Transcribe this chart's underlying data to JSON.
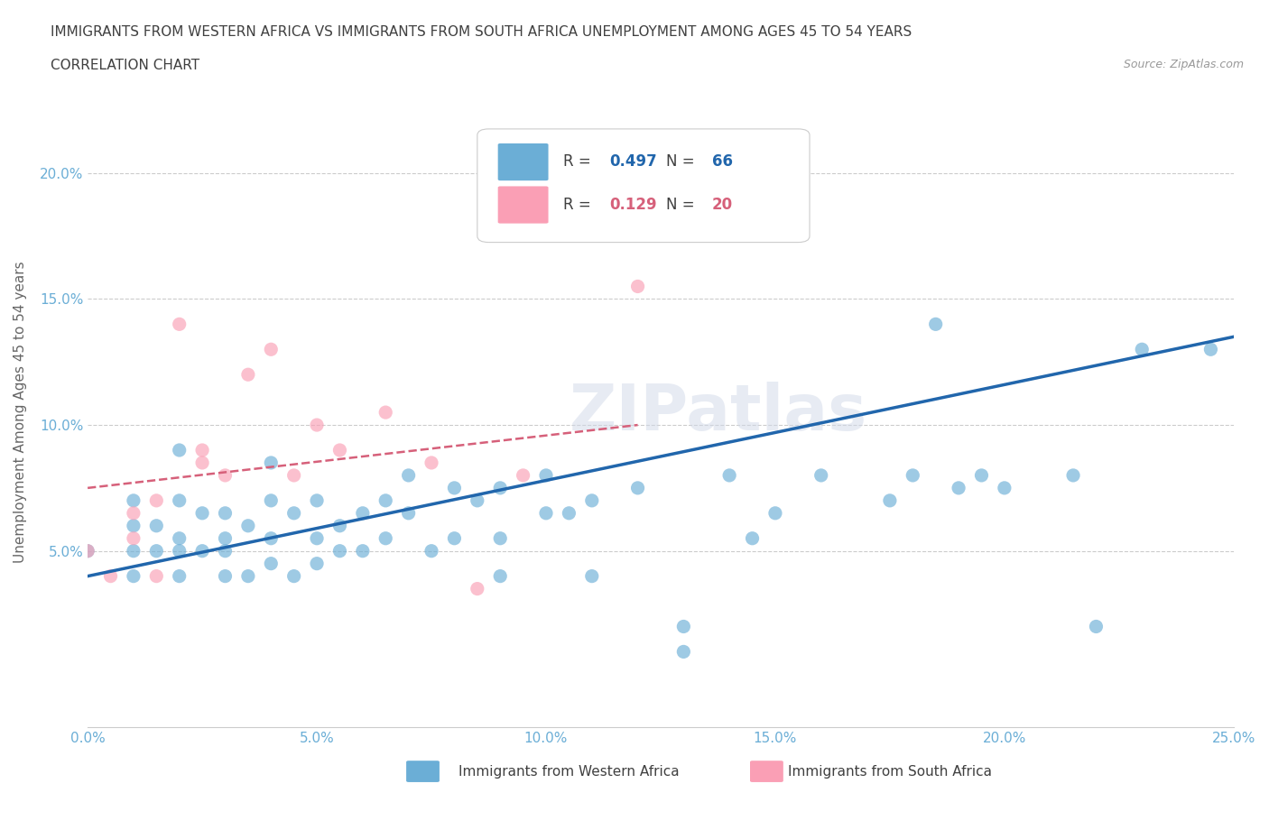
{
  "title_line1": "IMMIGRANTS FROM WESTERN AFRICA VS IMMIGRANTS FROM SOUTH AFRICA UNEMPLOYMENT AMONG AGES 45 TO 54 YEARS",
  "title_line2": "CORRELATION CHART",
  "source": "Source: ZipAtlas.com",
  "xlabel": "",
  "ylabel": "Unemployment Among Ages 45 to 54 years",
  "watermark": "ZIPatlas",
  "legend_blue_r": "R = 0.497",
  "legend_blue_n": "N = 66",
  "legend_pink_r": "R = 0.129",
  "legend_pink_n": "N = 20",
  "legend_blue_label": "Immigrants from Western Africa",
  "legend_pink_label": "Immigrants from South Africa",
  "xlim": [
    0,
    0.25
  ],
  "ylim": [
    -0.02,
    0.23
  ],
  "xticks": [
    0.0,
    0.05,
    0.1,
    0.15,
    0.2,
    0.25
  ],
  "yticks": [
    0.05,
    0.1,
    0.15,
    0.2
  ],
  "xticklabels": [
    "0.0%",
    "5.0%",
    "10.0%",
    "15.0%",
    "20.0%",
    "25.0%"
  ],
  "yticklabels": [
    "5.0%",
    "10.0%",
    "15.0%",
    "20.0%"
  ],
  "blue_color": "#6baed6",
  "pink_color": "#fa9fb5",
  "blue_line_color": "#2166ac",
  "pink_line_color": "#d6607a",
  "blue_scatter_x": [
    0.0,
    0.01,
    0.01,
    0.01,
    0.01,
    0.015,
    0.015,
    0.02,
    0.02,
    0.02,
    0.02,
    0.02,
    0.025,
    0.025,
    0.03,
    0.03,
    0.03,
    0.03,
    0.035,
    0.035,
    0.04,
    0.04,
    0.04,
    0.04,
    0.045,
    0.045,
    0.05,
    0.05,
    0.05,
    0.055,
    0.055,
    0.06,
    0.06,
    0.065,
    0.065,
    0.07,
    0.07,
    0.075,
    0.08,
    0.08,
    0.085,
    0.09,
    0.09,
    0.09,
    0.1,
    0.1,
    0.105,
    0.11,
    0.11,
    0.12,
    0.13,
    0.13,
    0.14,
    0.145,
    0.15,
    0.16,
    0.175,
    0.18,
    0.185,
    0.19,
    0.195,
    0.2,
    0.215,
    0.22,
    0.23,
    0.245
  ],
  "blue_scatter_y": [
    0.05,
    0.04,
    0.05,
    0.06,
    0.07,
    0.05,
    0.06,
    0.04,
    0.05,
    0.055,
    0.07,
    0.09,
    0.05,
    0.065,
    0.04,
    0.05,
    0.055,
    0.065,
    0.04,
    0.06,
    0.045,
    0.055,
    0.07,
    0.085,
    0.04,
    0.065,
    0.045,
    0.055,
    0.07,
    0.05,
    0.06,
    0.05,
    0.065,
    0.055,
    0.07,
    0.065,
    0.08,
    0.05,
    0.055,
    0.075,
    0.07,
    0.04,
    0.055,
    0.075,
    0.065,
    0.08,
    0.065,
    0.04,
    0.07,
    0.075,
    0.01,
    0.02,
    0.08,
    0.055,
    0.065,
    0.08,
    0.07,
    0.08,
    0.14,
    0.075,
    0.08,
    0.075,
    0.08,
    0.02,
    0.13,
    0.13
  ],
  "pink_scatter_x": [
    0.0,
    0.005,
    0.01,
    0.01,
    0.015,
    0.015,
    0.02,
    0.025,
    0.025,
    0.03,
    0.035,
    0.04,
    0.045,
    0.05,
    0.055,
    0.065,
    0.075,
    0.085,
    0.095,
    0.12
  ],
  "pink_scatter_y": [
    0.05,
    0.04,
    0.055,
    0.065,
    0.04,
    0.07,
    0.14,
    0.085,
    0.09,
    0.08,
    0.12,
    0.13,
    0.08,
    0.1,
    0.09,
    0.105,
    0.085,
    0.035,
    0.08,
    0.155
  ],
  "blue_line_x": [
    0.0,
    0.25
  ],
  "blue_line_y": [
    0.04,
    0.135
  ],
  "pink_line_x": [
    0.0,
    0.12
  ],
  "pink_line_y": [
    0.075,
    0.1
  ],
  "background_color": "#ffffff",
  "grid_color": "#cccccc",
  "title_color": "#404040",
  "axis_label_color": "#666666",
  "tick_label_color": "#6baed6",
  "source_color": "#999999"
}
